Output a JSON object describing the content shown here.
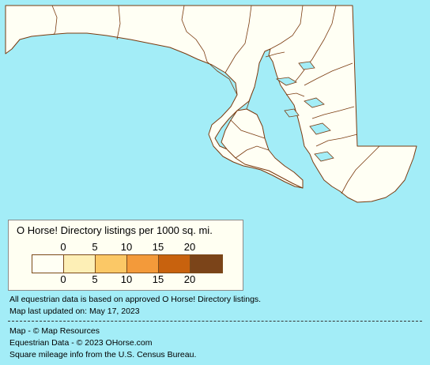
{
  "map": {
    "land_color": "#fffff4",
    "water_color": "#a3edf7",
    "border_color": "#7a3b10"
  },
  "legend": {
    "title": "O Horse! Directory listings per 1000 sq. mi.",
    "top_ticks": [
      "0",
      "5",
      "10",
      "15",
      "20"
    ],
    "bottom_ticks": [
      "0",
      "5",
      "10",
      "15",
      "20"
    ],
    "colors": [
      "#fffff4",
      "#fdefb6",
      "#fbc866",
      "#f39a3a",
      "#c8620e",
      "#7b4419"
    ]
  },
  "notes": {
    "data_basis": "All equestrian data is based on approved O Horse! Directory listings.",
    "last_updated": "Map last updated on: May 17, 2023"
  },
  "credits": {
    "map": "Map - © Map Resources",
    "equestrian": "Equestrian Data - © 2023 OHorse.com",
    "mileage": "Square mileage info from the U.S. Census Bureau."
  }
}
